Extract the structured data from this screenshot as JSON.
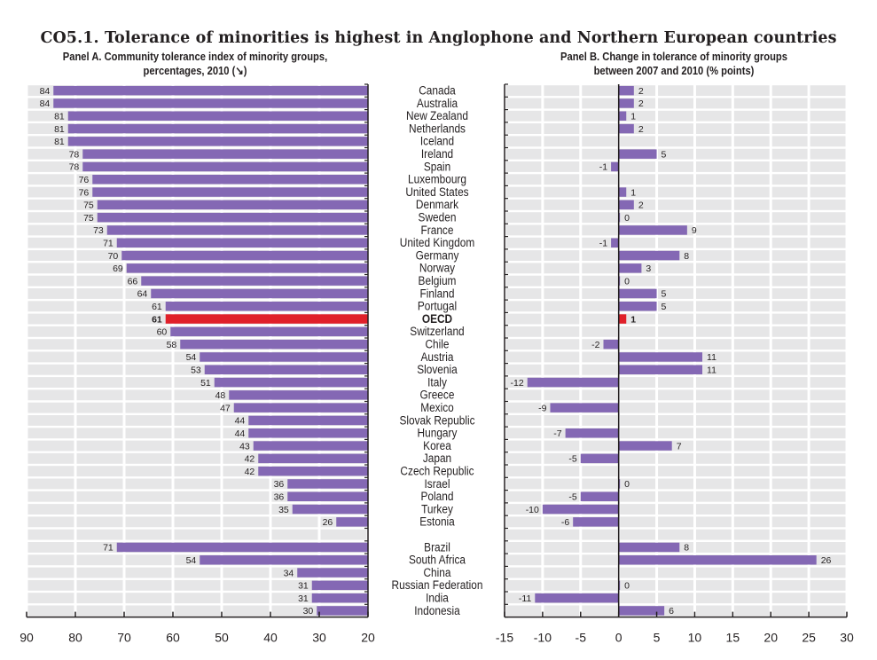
{
  "title": "CO5.1.  Tolerance of minorities is highest in Anglophone and Northern European countries",
  "colors": {
    "bar": "#8468b4",
    "highlight": "#e0202a",
    "grid_bg": "#e6e6e7",
    "axis": "#231f20"
  },
  "chart_data": [
    {
      "type": "bar",
      "orientation": "horizontal",
      "title_line1": "Panel A. Community tolerance index of minority groups,",
      "title_line2": "percentages, 2010 (↘)",
      "xlim": [
        90,
        20
      ],
      "xticks": [
        "90",
        "80",
        "70",
        "60",
        "50",
        "40",
        "30",
        "20"
      ],
      "xtick_values": [
        90,
        80,
        70,
        60,
        50,
        40,
        30,
        20
      ],
      "grid": true,
      "categories": [
        "Canada",
        "Australia",
        "New Zealand",
        "Netherlands",
        "Iceland",
        "Ireland",
        "Spain",
        "Luxembourg",
        "United States",
        "Denmark",
        "Sweden",
        "France",
        "United Kingdom",
        "Germany",
        "Norway",
        "Belgium",
        "Finland",
        "Portugal",
        "OECD",
        "Switzerland",
        "Chile",
        "Austria",
        "Slovenia",
        "Italy",
        "Greece",
        "Mexico",
        "Slovak Republic",
        "Hungary",
        "Korea",
        "Japan",
        "Czech Republic",
        "Israel",
        "Poland",
        "Turkey",
        "Estonia",
        "",
        "Brazil",
        "South Africa",
        "China",
        "Russian Federation",
        "India",
        "Indonesia"
      ],
      "values": [
        84,
        84,
        81,
        81,
        81,
        78,
        78,
        76,
        76,
        75,
        75,
        73,
        71,
        70,
        69,
        66,
        64,
        61,
        61,
        60,
        58,
        54,
        53,
        51,
        48,
        47,
        44,
        44,
        43,
        42,
        42,
        36,
        36,
        35,
        26,
        null,
        71,
        54,
        34,
        31,
        31,
        30
      ],
      "labels": [
        "84",
        "84",
        "81",
        "81",
        "81",
        "78",
        "78",
        "76",
        "76",
        "75",
        "75",
        "73",
        "71",
        "70",
        "69",
        "66",
        "64",
        "61",
        "61",
        "60",
        "58",
        "54",
        "53",
        "51",
        "48",
        "47",
        "44",
        "44",
        "43",
        "42",
        "42",
        "36",
        "36",
        "35",
        "26",
        "",
        "71",
        "54",
        "34",
        "31",
        "31",
        "30"
      ],
      "highlight": "OECD"
    },
    {
      "type": "bar",
      "orientation": "horizontal",
      "title_line1": "Panel B. Change in tolerance of minority groups",
      "title_line2": "between 2007 and 2010 (% points)",
      "xlim": [
        -15,
        30
      ],
      "xticks": [
        "-15",
        "-10",
        "-5",
        "0",
        "5",
        "10",
        "15",
        "20",
        "25",
        "30"
      ],
      "xtick_values": [
        -15,
        -10,
        -5,
        0,
        5,
        10,
        15,
        20,
        25,
        30
      ],
      "grid": true,
      "categories": [
        "Canada",
        "Australia",
        "New Zealand",
        "Netherlands",
        "Iceland",
        "Ireland",
        "Spain",
        "Luxembourg",
        "United States",
        "Denmark",
        "Sweden",
        "France",
        "United Kingdom",
        "Germany",
        "Norway",
        "Belgium",
        "Finland",
        "Portugal",
        "OECD",
        "Switzerland",
        "Chile",
        "Austria",
        "Slovenia",
        "Italy",
        "Greece",
        "Mexico",
        "Slovak Republic",
        "Hungary",
        "Korea",
        "Japan",
        "Czech Republic",
        "Israel",
        "Poland",
        "Turkey",
        "Estonia",
        "",
        "Brazil",
        "South Africa",
        "China",
        "Russian Federation",
        "India",
        "Indonesia"
      ],
      "values": [
        2,
        2,
        1,
        2,
        null,
        5,
        -1,
        null,
        1,
        2,
        0,
        9,
        -1,
        8,
        3,
        0,
        5,
        5,
        1,
        null,
        -2,
        11,
        11,
        -12,
        null,
        -9,
        null,
        -7,
        7,
        -5,
        null,
        0,
        -5,
        -10,
        -6,
        null,
        8,
        26,
        null,
        0,
        -11,
        6
      ],
      "labels": [
        "2",
        "2",
        "1",
        "2",
        "",
        "5",
        "-1",
        "",
        "1",
        "2",
        "0",
        "9",
        "-1",
        "8",
        "3",
        "0",
        "5",
        "5",
        "1",
        "",
        "-2",
        "11",
        "11",
        "-12",
        "",
        "-9",
        "",
        "-7",
        "7",
        "-5",
        "",
        "0",
        "-5",
        "-10",
        "-6",
        "",
        "8",
        "26",
        "",
        "0",
        "-11",
        "6"
      ],
      "highlight": "OECD"
    }
  ]
}
